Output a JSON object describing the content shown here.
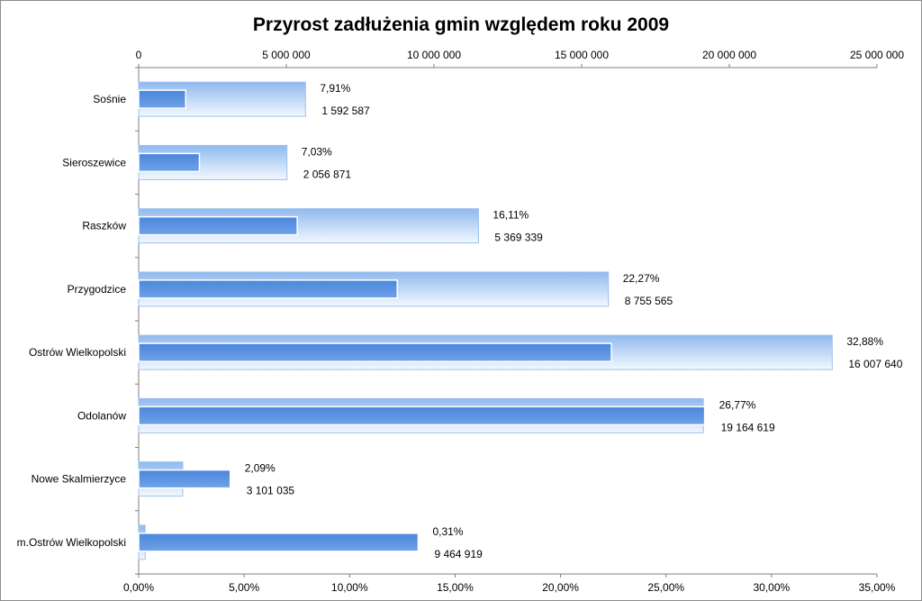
{
  "chart_data": {
    "type": "bar",
    "orientation": "horizontal",
    "title": "Przyrost zadłużenia gmin względem roku 2009",
    "categories": [
      "Sośnie",
      "Sieroszewice",
      "Raszków",
      "Przygodzice",
      "Ostrów Wielkopolski",
      "Odolanów",
      "Nowe Skalmierzyce",
      "m.Ostrów Wielkopolski"
    ],
    "series": [
      {
        "axis": "bottom",
        "values": [
          7.91,
          7.03,
          16.11,
          22.27,
          32.88,
          26.77,
          2.09,
          0.31
        ],
        "labels": [
          "7,91%",
          "7,03%",
          "16,11%",
          "22,27%",
          "32,88%",
          "26,77%",
          "2,09%",
          "0,31%"
        ],
        "color": "#a9cbf4"
      },
      {
        "axis": "top",
        "values": [
          1592587,
          2056871,
          5369339,
          8755565,
          16007640,
          19164619,
          3101035,
          9464919
        ],
        "labels": [
          "1 592 587",
          "2 056 871",
          "5 369 339",
          "8 755 565",
          "16 007 640",
          "19 164 619",
          "3 101 035",
          "9 464 919"
        ],
        "color": "#5b93e0"
      }
    ],
    "top_axis": {
      "range": [
        0,
        25000000
      ],
      "ticks": [
        0,
        5000000,
        10000000,
        15000000,
        20000000,
        25000000
      ],
      "tick_labels": [
        "0",
        "5 000 000",
        "10 000 000",
        "15 000 000",
        "20 000 000",
        "25 000 000"
      ]
    },
    "bottom_axis": {
      "range": [
        0,
        35
      ],
      "ticks": [
        0,
        5,
        10,
        15,
        20,
        25,
        30,
        35
      ],
      "tick_labels": [
        "0,00%",
        "5,00%",
        "10,00%",
        "15,00%",
        "20,00%",
        "25,00%",
        "30,00%",
        "35,00%"
      ]
    },
    "grid": false,
    "legend": "none"
  }
}
